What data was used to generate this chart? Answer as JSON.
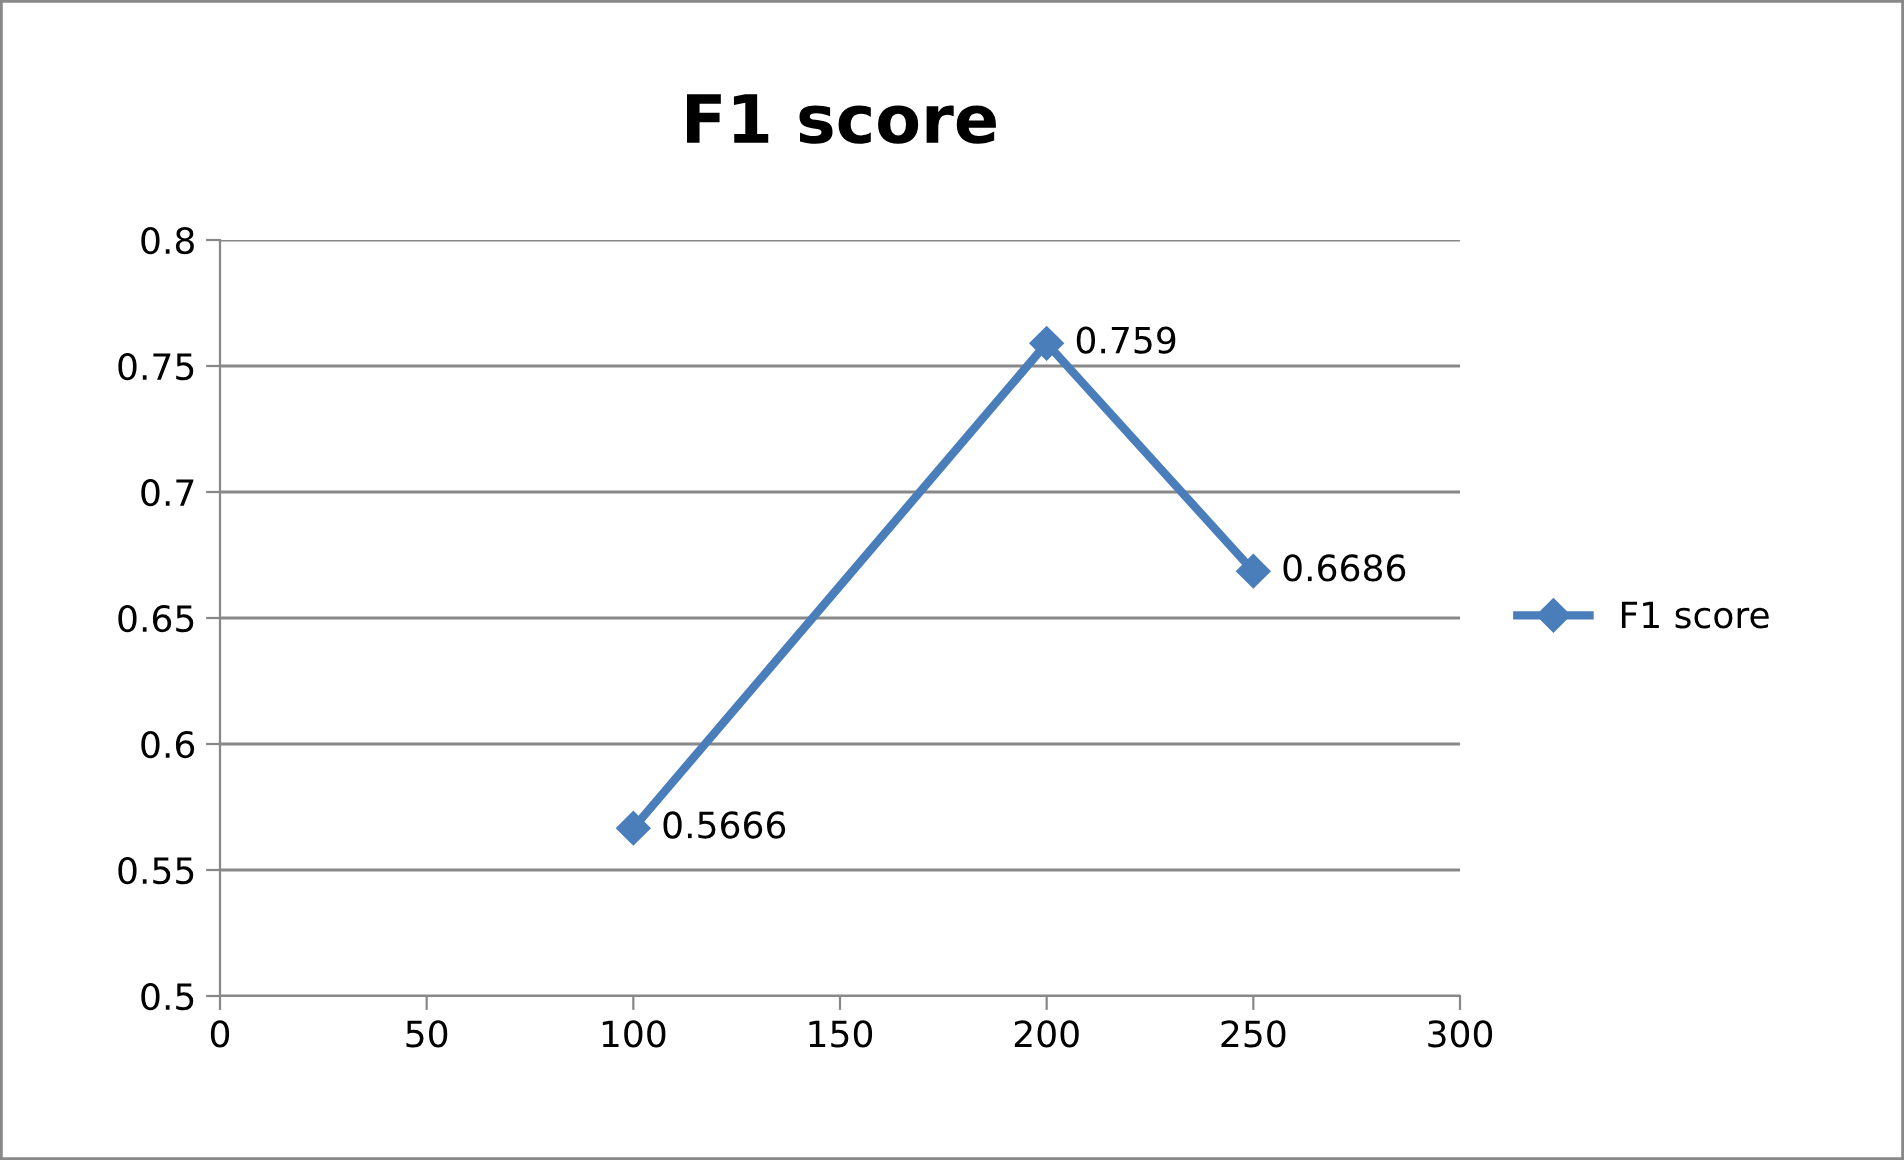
{
  "chart_data": {
    "type": "line",
    "title": "F1 score",
    "x": [
      100,
      200,
      250
    ],
    "series": [
      {
        "name": "F1 score",
        "color": "#4a7ebb",
        "values": [
          0.5666,
          0.759,
          0.6686
        ]
      }
    ],
    "xlim": [
      0,
      300
    ],
    "xticks": [
      0,
      50,
      100,
      150,
      200,
      250,
      300
    ],
    "ylim": [
      0.5,
      0.8
    ],
    "yticks": [
      0.5,
      0.55,
      0.6,
      0.65,
      0.7,
      0.75,
      0.8
    ],
    "grid": "y",
    "legend": "right",
    "marker": "diamond",
    "line_style": "solid",
    "data_labels": true
  }
}
